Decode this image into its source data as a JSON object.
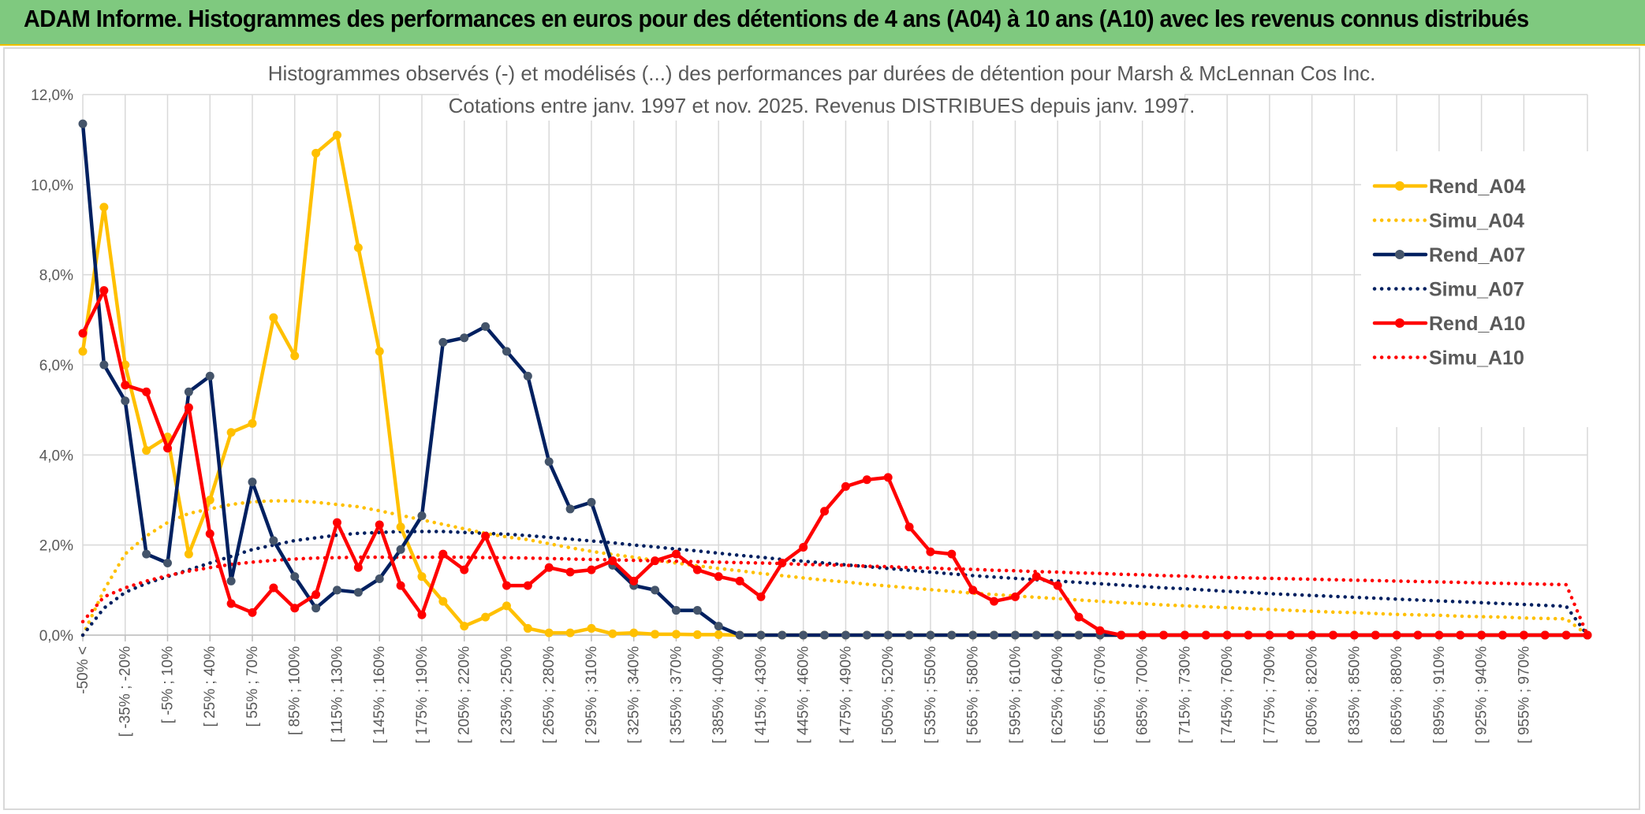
{
  "header": {
    "title": "ADAM Informe. Histogrammes des performances en euros pour des détentions de 4 ans (A04) à 10 ans (A10) avec les revenus connus distribués"
  },
  "colors": {
    "header_bg": "#7fc97f",
    "A04": "#ffc000",
    "A07": "#002060",
    "A10": "#ff0000",
    "grid": "#d9d9d9",
    "text": "#595959"
  },
  "chart_data": {
    "type": "line",
    "title_lines": [
      "Histogrammes observés (-) et modélisés (...) des performances par durées de détention pour Marsh & McLennan Cos Inc.",
      "Cotations entre janv. 1997 et nov. 2025. Revenus DISTRIBUES depuis janv. 1997."
    ],
    "ylim": [
      0,
      12
    ],
    "y_ticks": [
      "0,0%",
      "2,0%",
      "4,0%",
      "6,0%",
      "8,0%",
      "10,0%",
      "12,0%"
    ],
    "x_tick_labels": [
      "-50% <",
      "[ -35% ; -20%",
      "[ -5% ; 10%",
      "[ 25% ; 40%",
      "[ 55% ; 70%",
      "[ 85% ; 100%",
      "[ 115% ; 130%",
      "[ 145% ; 160%",
      "[ 175% ; 190%",
      "[ 205% ; 220%",
      "[ 235% ; 250%",
      "[ 265% ; 280%",
      "[ 295% ; 310%",
      "[ 325% ; 340%",
      "[ 355% ; 370%",
      "[ 385% ; 400%",
      "[ 415% ; 430%",
      "[ 445% ; 460%",
      "[ 475% ; 490%",
      "[ 505% ; 520%",
      "[ 535% ; 550%",
      "[ 565% ; 580%",
      "[ 595% ; 610%",
      "[ 625% ; 640%",
      "[ 655% ; 670%",
      "[ 685% ; 700%",
      "[ 715% ; 730%",
      "[ 745% ; 760%",
      "[ 775% ; 790%",
      "[ 805% ; 820%",
      "[ 835% ; 850%",
      "[ 865% ; 880%",
      "[ 895% ; 910%",
      "[ 925% ; 940%",
      "[ 955% ; 970%"
    ],
    "n_points": 72,
    "grid": true,
    "legend_position": "right",
    "series": [
      {
        "name": "Rend_A04",
        "style": "solid",
        "color": "#ffc000",
        "values": [
          6.3,
          9.5,
          6.0,
          4.1,
          4.4,
          1.8,
          3.0,
          4.5,
          4.7,
          7.05,
          6.2,
          10.7,
          11.1,
          8.6,
          6.3,
          2.4,
          1.3,
          0.75,
          0.2,
          0.4,
          0.65,
          0.15,
          0.05,
          0.05,
          0.15,
          0.03,
          0.05,
          0.02,
          0.02,
          0.01,
          0.01,
          0,
          0,
          0,
          0,
          0,
          0,
          0,
          0,
          0,
          0,
          0,
          0,
          0,
          0,
          0,
          0,
          0,
          0,
          0,
          0,
          0,
          0,
          0,
          0,
          0,
          0,
          0,
          0,
          0,
          0,
          0,
          0,
          0,
          0,
          0,
          0,
          0,
          0,
          0,
          0,
          0
        ]
      },
      {
        "name": "Simu_A04",
        "style": "dotted",
        "color": "#ffc000",
        "values": [
          0.0,
          1.0,
          1.8,
          2.2,
          2.5,
          2.7,
          2.8,
          2.9,
          2.96,
          2.98,
          2.98,
          2.95,
          2.9,
          2.85,
          2.76,
          2.66,
          2.56,
          2.46,
          2.36,
          2.26,
          2.18,
          2.12,
          2.03,
          1.94,
          1.86,
          1.79,
          1.73,
          1.66,
          1.6,
          1.54,
          1.48,
          1.43,
          1.37,
          1.32,
          1.27,
          1.22,
          1.18,
          1.13,
          1.09,
          1.05,
          1.01,
          0.97,
          0.93,
          0.9,
          0.87,
          0.84,
          0.81,
          0.78,
          0.75,
          0.72,
          0.7,
          0.67,
          0.65,
          0.63,
          0.61,
          0.59,
          0.57,
          0.55,
          0.53,
          0.51,
          0.5,
          0.48,
          0.46,
          0.45,
          0.44,
          0.42,
          0.41,
          0.4,
          0.38,
          0.37,
          0.36,
          0.0
        ]
      },
      {
        "name": "Rend_A07",
        "style": "solid",
        "color": "#002060",
        "values": [
          11.35,
          6.0,
          5.2,
          1.8,
          1.6,
          5.4,
          5.75,
          1.2,
          3.4,
          2.1,
          1.3,
          0.6,
          1.0,
          0.95,
          1.25,
          1.9,
          2.65,
          6.5,
          6.6,
          6.85,
          6.3,
          5.75,
          3.85,
          2.8,
          2.95,
          1.55,
          1.1,
          1.0,
          0.55,
          0.55,
          0.2,
          0,
          0,
          0,
          0,
          0,
          0,
          0,
          0,
          0,
          0,
          0,
          0,
          0,
          0,
          0,
          0,
          0,
          0,
          0,
          0,
          0,
          0,
          0,
          0,
          0,
          0,
          0,
          0,
          0,
          0,
          0,
          0,
          0,
          0,
          0,
          0,
          0,
          0,
          0,
          0,
          0
        ]
      },
      {
        "name": "Simu_A07",
        "style": "dotted",
        "color": "#002060",
        "values": [
          0.0,
          0.6,
          0.95,
          1.15,
          1.3,
          1.45,
          1.6,
          1.75,
          1.9,
          2.0,
          2.1,
          2.16,
          2.22,
          2.26,
          2.28,
          2.3,
          2.3,
          2.3,
          2.28,
          2.26,
          2.24,
          2.21,
          2.17,
          2.13,
          2.09,
          2.05,
          2.0,
          1.96,
          1.91,
          1.87,
          1.82,
          1.77,
          1.73,
          1.68,
          1.64,
          1.6,
          1.56,
          1.52,
          1.48,
          1.44,
          1.4,
          1.36,
          1.32,
          1.29,
          1.26,
          1.23,
          1.2,
          1.17,
          1.14,
          1.11,
          1.08,
          1.05,
          1.03,
          1.0,
          0.97,
          0.95,
          0.92,
          0.9,
          0.88,
          0.86,
          0.84,
          0.82,
          0.8,
          0.78,
          0.76,
          0.74,
          0.72,
          0.7,
          0.68,
          0.66,
          0.64,
          0.0
        ]
      },
      {
        "name": "Rend_A10",
        "style": "solid",
        "color": "#ff0000",
        "values": [
          6.7,
          7.65,
          5.55,
          5.4,
          4.15,
          5.05,
          2.25,
          0.7,
          0.5,
          1.05,
          0.6,
          0.9,
          2.5,
          1.5,
          2.45,
          1.1,
          0.45,
          1.8,
          1.45,
          2.2,
          1.1,
          1.1,
          1.5,
          1.4,
          1.45,
          1.65,
          1.2,
          1.65,
          1.8,
          1.45,
          1.3,
          1.2,
          0.85,
          1.6,
          1.95,
          2.75,
          3.3,
          3.45,
          3.5,
          2.4,
          1.85,
          1.8,
          1.0,
          0.75,
          0.85,
          1.3,
          1.1,
          0.4,
          0.1,
          0,
          0,
          0,
          0,
          0,
          0,
          0,
          0,
          0,
          0,
          0,
          0,
          0,
          0,
          0,
          0,
          0,
          0,
          0,
          0,
          0,
          0,
          0
        ]
      },
      {
        "name": "Simu_A10",
        "style": "dotted",
        "color": "#ff0000",
        "values": [
          0.3,
          0.85,
          1.05,
          1.2,
          1.32,
          1.42,
          1.5,
          1.57,
          1.62,
          1.66,
          1.69,
          1.71,
          1.72,
          1.73,
          1.73,
          1.73,
          1.73,
          1.73,
          1.73,
          1.72,
          1.72,
          1.71,
          1.7,
          1.69,
          1.68,
          1.67,
          1.66,
          1.65,
          1.64,
          1.63,
          1.62,
          1.61,
          1.6,
          1.59,
          1.57,
          1.56,
          1.55,
          1.53,
          1.52,
          1.5,
          1.49,
          1.47,
          1.46,
          1.44,
          1.43,
          1.41,
          1.4,
          1.38,
          1.37,
          1.35,
          1.34,
          1.32,
          1.31,
          1.29,
          1.28,
          1.27,
          1.26,
          1.25,
          1.24,
          1.23,
          1.22,
          1.21,
          1.2,
          1.19,
          1.18,
          1.17,
          1.16,
          1.15,
          1.14,
          1.13,
          1.12,
          0.0
        ]
      }
    ]
  }
}
